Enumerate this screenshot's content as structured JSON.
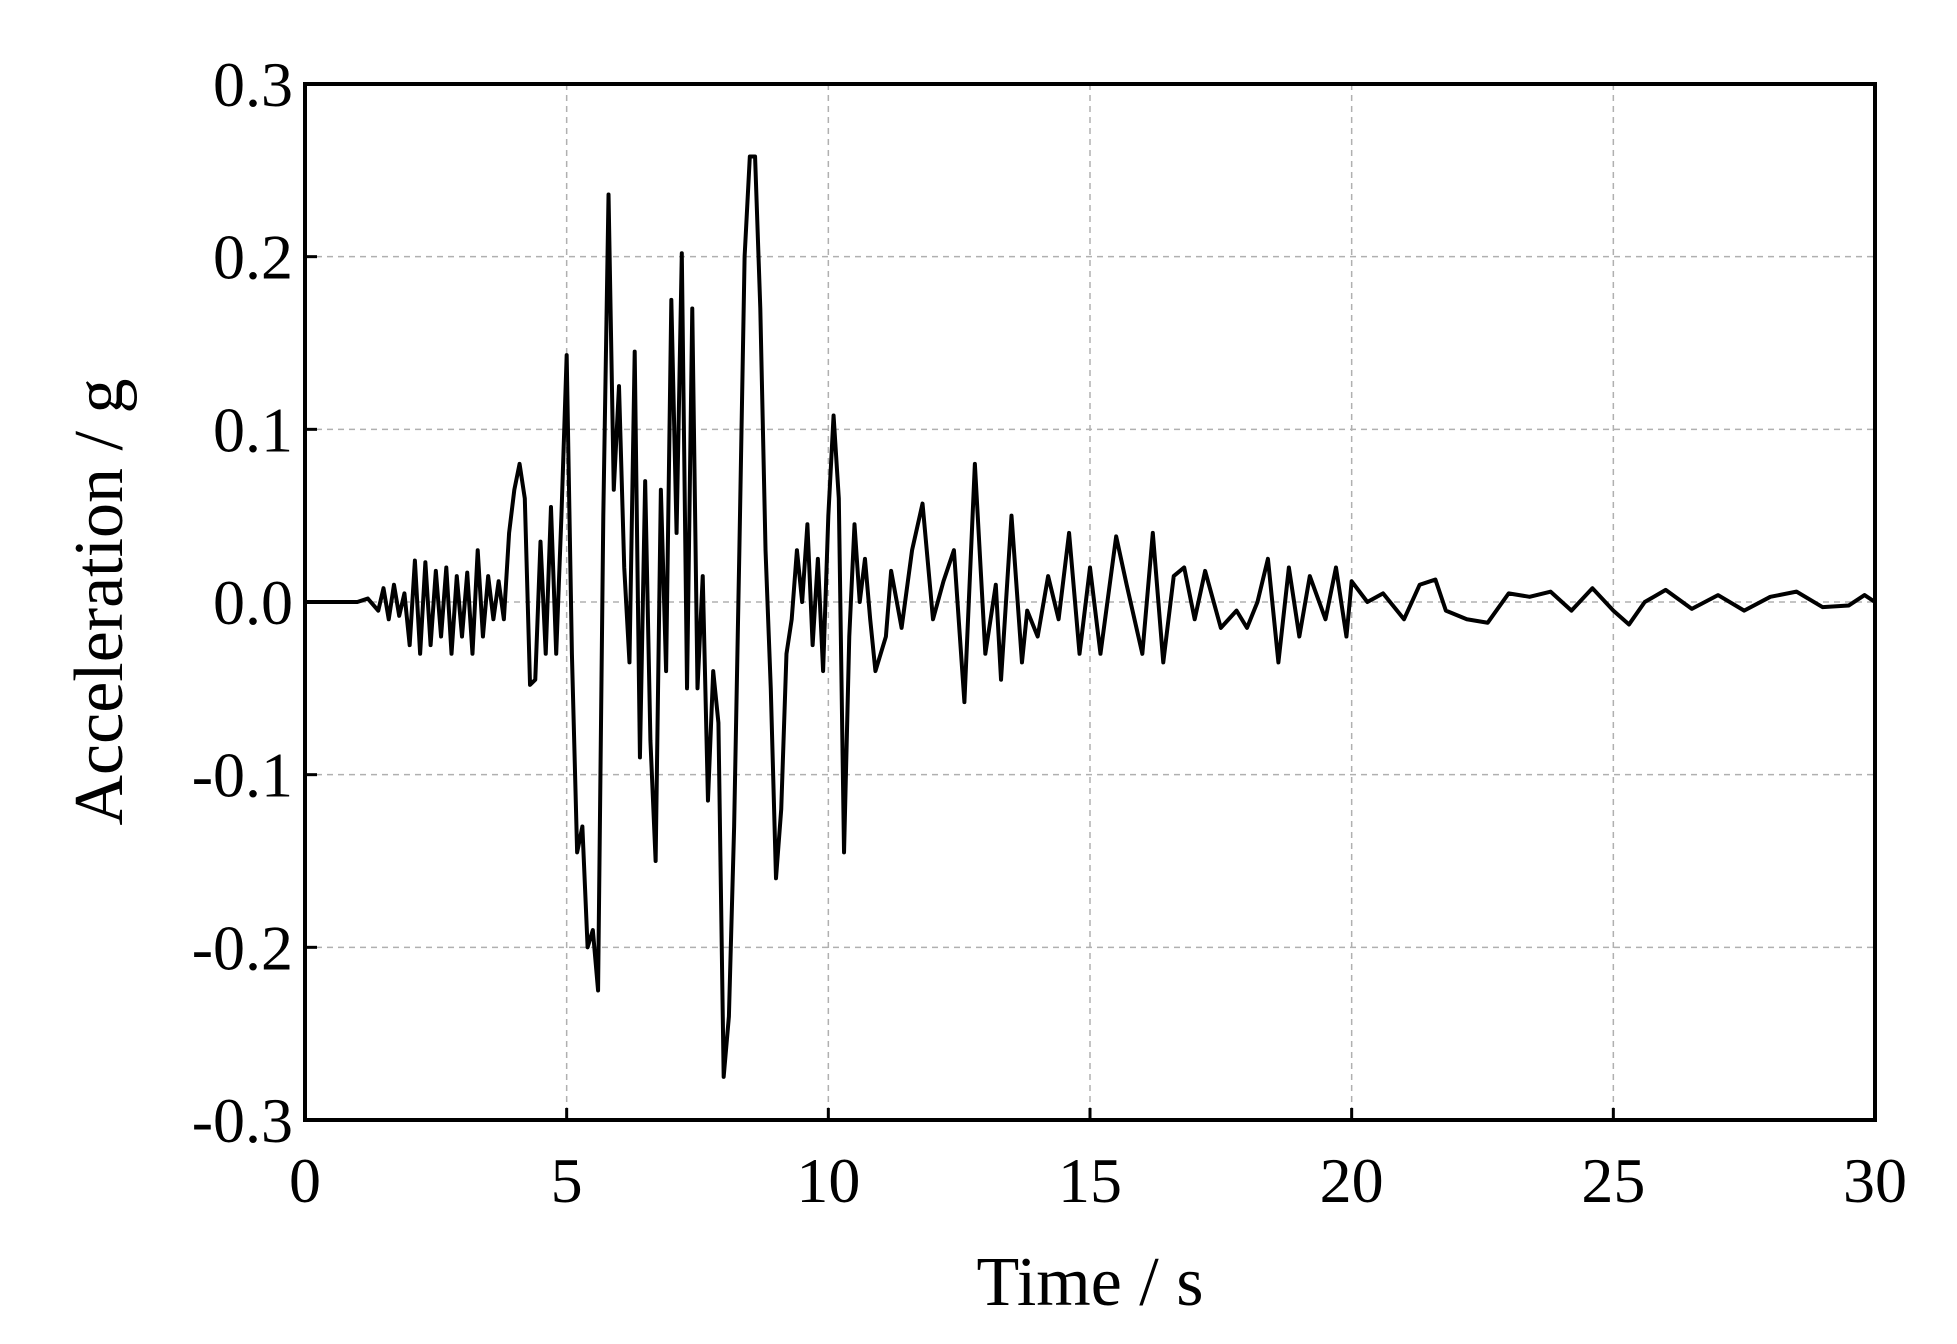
{
  "chart_data": {
    "type": "line",
    "xlabel": "Time / s",
    "ylabel": "Acceleration / g",
    "xlim": [
      0,
      30
    ],
    "ylim": [
      -0.3,
      0.3
    ],
    "xticks": [
      0,
      5,
      10,
      15,
      20,
      25,
      30
    ],
    "yticks": [
      -0.3,
      -0.2,
      -0.1,
      {
        "value": 0,
        "label": "0.0"
      },
      0.1,
      0.2,
      0.3
    ],
    "grid": true,
    "series": [
      {
        "color": "#000000",
        "x": [
          0,
          1.0,
          1.2,
          1.4,
          1.5,
          1.6,
          1.7,
          1.8,
          1.9,
          2.0,
          2.1,
          2.2,
          2.3,
          2.4,
          2.5,
          2.6,
          2.7,
          2.8,
          2.9,
          3.0,
          3.1,
          3.2,
          3.3,
          3.4,
          3.5,
          3.6,
          3.7,
          3.8,
          3.9,
          4.0,
          4.1,
          4.2,
          4.3,
          4.4,
          4.5,
          4.6,
          4.7,
          4.8,
          4.9,
          5.0,
          5.1,
          5.2,
          5.3,
          5.4,
          5.5,
          5.6,
          5.7,
          5.8,
          5.9,
          6.0,
          6.1,
          6.2,
          6.3,
          6.4,
          6.5,
          6.6,
          6.7,
          6.8,
          6.9,
          7.0,
          7.1,
          7.2,
          7.3,
          7.4,
          7.5,
          7.6,
          7.7,
          7.8,
          7.9,
          8.0,
          8.1,
          8.2,
          8.3,
          8.4,
          8.5,
          8.6,
          8.7,
          8.8,
          8.9,
          9.0,
          9.1,
          9.2,
          9.3,
          9.4,
          9.5,
          9.6,
          9.7,
          9.8,
          9.9,
          10.0,
          10.1,
          10.2,
          10.3,
          10.4,
          10.5,
          10.6,
          10.7,
          10.8,
          10.9,
          11.1,
          11.2,
          11.4,
          11.6,
          11.8,
          12.0,
          12.2,
          12.4,
          12.6,
          12.8,
          13.0,
          13.2,
          13.3,
          13.5,
          13.7,
          13.8,
          14.0,
          14.2,
          14.4,
          14.6,
          14.8,
          15.0,
          15.2,
          15.5,
          15.7,
          16.0,
          16.2,
          16.4,
          16.6,
          16.8,
          17.0,
          17.2,
          17.5,
          17.8,
          18.0,
          18.2,
          18.4,
          18.6,
          18.8,
          19.0,
          19.2,
          19.5,
          19.7,
          19.9,
          20.0,
          20.3,
          20.6,
          21.0,
          21.3,
          21.6,
          21.8,
          22.2,
          22.6,
          23.0,
          23.4,
          23.8,
          24.2,
          24.6,
          25.0,
          25.3,
          25.6,
          26.0,
          26.5,
          27.0,
          27.5,
          28.0,
          28.5,
          29.0,
          29.5,
          29.8,
          30.0
        ],
        "values": [
          0,
          0,
          0.002,
          -0.005,
          0.008,
          -0.01,
          0.01,
          -0.008,
          0.005,
          -0.025,
          0.024,
          -0.03,
          0.023,
          -0.025,
          0.018,
          -0.02,
          0.02,
          -0.03,
          0.015,
          -0.02,
          0.017,
          -0.03,
          0.03,
          -0.02,
          0.015,
          -0.01,
          0.012,
          -0.01,
          0.04,
          0.065,
          0.08,
          0.06,
          -0.048,
          -0.045,
          0.035,
          -0.03,
          0.055,
          -0.03,
          0.05,
          0.143,
          -0.03,
          -0.145,
          -0.13,
          -0.2,
          -0.19,
          -0.225,
          0.05,
          0.236,
          0.065,
          0.125,
          0.02,
          -0.035,
          0.145,
          -0.09,
          0.07,
          -0.08,
          -0.15,
          0.065,
          -0.04,
          0.175,
          0.04,
          0.202,
          -0.05,
          0.17,
          -0.05,
          0.015,
          -0.115,
          -0.04,
          -0.07,
          -0.275,
          -0.24,
          -0.13,
          0.03,
          0.2,
          0.258,
          0.258,
          0.17,
          0.03,
          -0.05,
          -0.16,
          -0.12,
          -0.03,
          -0.01,
          0.03,
          0.0,
          0.045,
          -0.025,
          0.025,
          -0.04,
          0.05,
          0.108,
          0.06,
          -0.145,
          -0.02,
          0.045,
          0.0,
          0.025,
          -0.01,
          -0.04,
          -0.02,
          0.018,
          -0.015,
          0.03,
          0.057,
          -0.01,
          0.012,
          0.03,
          -0.058,
          0.08,
          -0.03,
          0.01,
          -0.045,
          0.05,
          -0.035,
          -0.005,
          -0.02,
          0.015,
          -0.01,
          0.04,
          -0.03,
          0.02,
          -0.03,
          0.038,
          0.01,
          -0.03,
          0.04,
          -0.035,
          0.015,
          0.02,
          -0.01,
          0.018,
          -0.015,
          -0.005,
          -0.015,
          0.0,
          0.025,
          -0.035,
          0.02,
          -0.02,
          0.015,
          -0.01,
          0.02,
          -0.02,
          0.012,
          0.0,
          0.005,
          -0.01,
          0.01,
          0.013,
          -0.005,
          -0.01,
          -0.012,
          0.005,
          0.003,
          0.006,
          -0.005,
          0.008,
          -0.005,
          -0.013,
          0.0,
          0.007,
          -0.004,
          0.004,
          -0.005,
          0.003,
          0.006,
          -0.003,
          -0.002,
          0.004,
          0.0
        ]
      }
    ]
  }
}
